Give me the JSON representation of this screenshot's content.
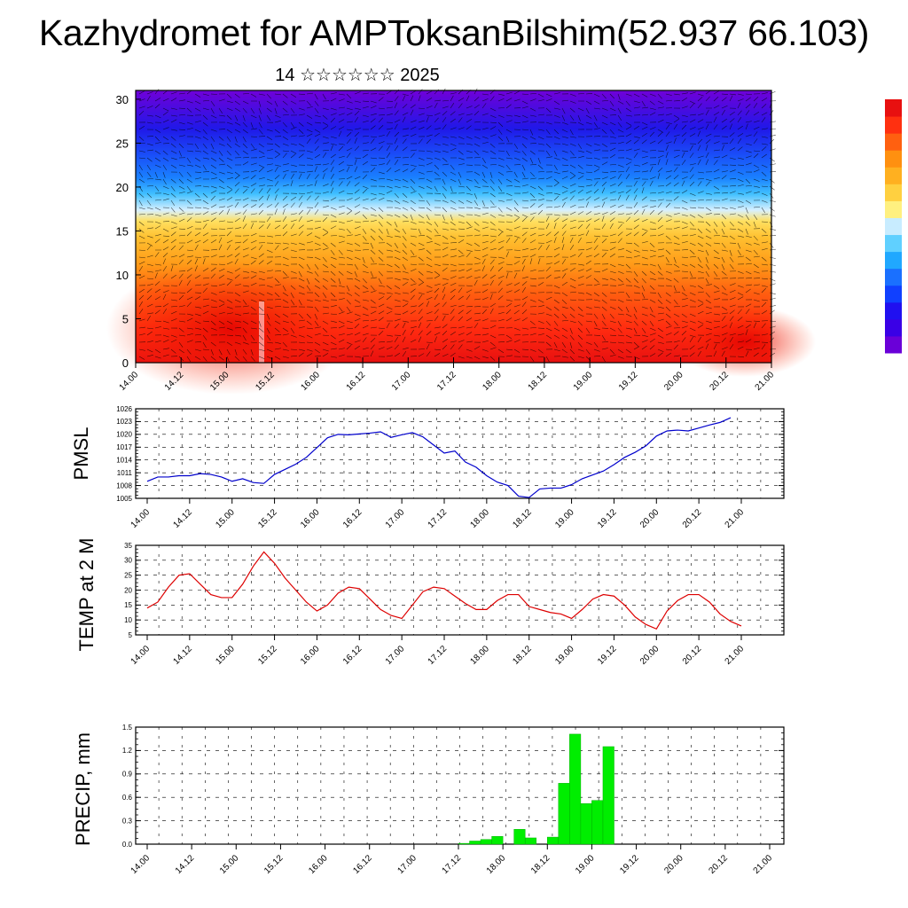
{
  "title": "Kazhydromet for AMPToksanBilshim(52.937 66.103)",
  "subtitle": "14 ☆☆☆☆☆☆ 2025",
  "x_tick_labels": [
    "14.00",
    "14.12",
    "15.00",
    "15.12",
    "16.00",
    "16.12",
    "17.00",
    "17.12",
    "18.00",
    "18.12",
    "19.00",
    "19.12",
    "20.00",
    "20.12",
    "21.00"
  ],
  "chart_data": [
    {
      "id": "cross_section",
      "type": "heatmap",
      "description_of_axes": "time vs level",
      "ylim": [
        0,
        31
      ],
      "y_ticks": [
        "0",
        "5",
        "10",
        "15",
        "20",
        "25",
        "30"
      ],
      "colorbar": [
        "#6a00d8",
        "#3a00e6",
        "#2010f0",
        "#1040ff",
        "#1a70ff",
        "#20a8ff",
        "#60d0ff",
        "#c8ecff",
        "#fff080",
        "#ffd040",
        "#ffb020",
        "#ff9010",
        "#ff6010",
        "#ff3010",
        "#e81010"
      ]
    },
    {
      "id": "pmsl",
      "type": "line",
      "ylabel": "PMSL",
      "ylim": [
        1005,
        1026
      ],
      "y_ticks": [
        "1005",
        "1008",
        "1011",
        "1014",
        "1017",
        "1020",
        "1023",
        "1026"
      ],
      "color": "#0000cc",
      "x": [
        0,
        3,
        6,
        9,
        12,
        15,
        18,
        21,
        24,
        27,
        30,
        33,
        36,
        39,
        42,
        45,
        48,
        51,
        54,
        57,
        60,
        63,
        66,
        69,
        72,
        75,
        78,
        81,
        84,
        87,
        90,
        93,
        96,
        99,
        102,
        105,
        108,
        111,
        114,
        117,
        120,
        123,
        126,
        129,
        132,
        135,
        138,
        141,
        144,
        147,
        150,
        153,
        156,
        159,
        162,
        165
      ],
      "values": [
        1009,
        1010,
        1010,
        1010.3,
        1010.3,
        1010.8,
        1010.6,
        1010,
        1009,
        1009.6,
        1008.7,
        1008.5,
        1010.6,
        1011.8,
        1013,
        1014.6,
        1016.9,
        1019.2,
        1020,
        1019.9,
        1020.1,
        1020.3,
        1020.6,
        1019.3,
        1019.9,
        1020.4,
        1019.4,
        1017.5,
        1015.6,
        1016.1,
        1013.5,
        1012.3,
        1010.3,
        1008.8,
        1008.0,
        1005.5,
        1005.2,
        1007.2,
        1007.4,
        1007.4,
        1008.2,
        1009.6,
        1010.5,
        1011.4,
        1012.9,
        1014.6,
        1015.8,
        1017.3,
        1019.6,
        1020.8,
        1021.0,
        1020.8,
        1021.5,
        1022.2,
        1022.8,
        1023.9
      ]
    },
    {
      "id": "temp",
      "type": "line",
      "ylabel": "TEMP at 2 M",
      "ylim": [
        5,
        35
      ],
      "y_ticks": [
        "5",
        "10",
        "15",
        "20",
        "25",
        "30",
        "35"
      ],
      "color": "#dd0000",
      "x": [
        0,
        3,
        6,
        9,
        12,
        15,
        18,
        21,
        24,
        27,
        30,
        33,
        36,
        39,
        42,
        45,
        48,
        51,
        54,
        57,
        60,
        63,
        66,
        69,
        72,
        75,
        78,
        81,
        84,
        87,
        90,
        93,
        96,
        99,
        102,
        105,
        108,
        111,
        114,
        117,
        120,
        123,
        126,
        129,
        132,
        135,
        138,
        141,
        144,
        147,
        150,
        153,
        156,
        159,
        162,
        165,
        168
      ],
      "values": [
        14,
        16,
        21,
        25,
        25.5,
        22,
        18.5,
        17.5,
        17.5,
        22,
        28,
        32.8,
        29,
        24,
        20,
        16,
        13,
        15,
        19,
        21,
        20.5,
        17,
        13.5,
        11.5,
        10.5,
        15,
        19.5,
        21,
        20.5,
        18,
        15.5,
        13.5,
        13.5,
        16.5,
        18.5,
        18.5,
        14.5,
        13.5,
        12.5,
        12,
        10.5,
        13.5,
        17,
        18.5,
        18,
        15,
        11,
        8.5,
        7,
        13,
        16.5,
        18.5,
        18.5,
        16,
        12,
        9.5,
        8
      ]
    },
    {
      "id": "precip",
      "type": "bar",
      "ylabel": "PRECIP, mm",
      "ylim": [
        0,
        1.5
      ],
      "y_ticks": [
        "0.0",
        "0.3",
        "0.6",
        "0.9",
        "1.2",
        "1.5"
      ],
      "color": "#00ee00",
      "bar_width_hours": 3,
      "x": [
        84,
        87,
        90,
        93,
        96,
        99,
        102,
        105,
        108,
        111,
        114,
        117,
        120,
        123
      ],
      "values": [
        0.01,
        0.04,
        0.06,
        0.1,
        0.0,
        0.19,
        0.08,
        0.0,
        0.09,
        0.78,
        1.41,
        0.52,
        0.56,
        1.25
      ]
    }
  ]
}
